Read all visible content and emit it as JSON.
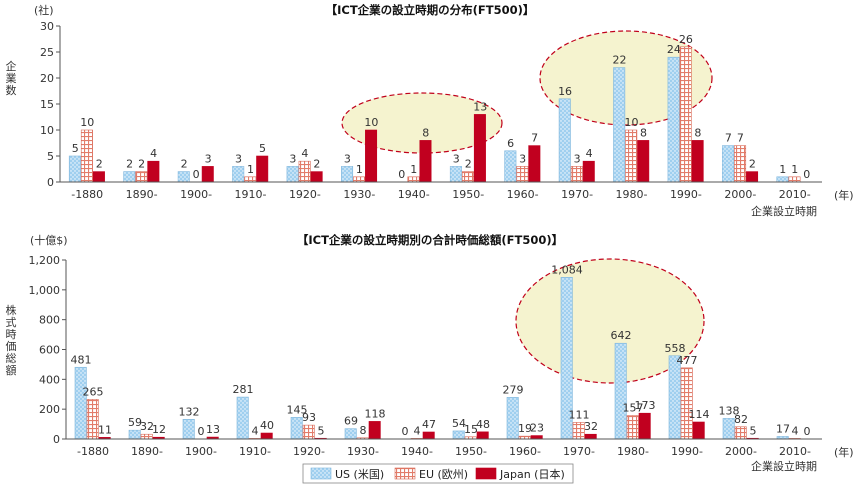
{
  "colors": {
    "US": "#9fcfef",
    "EU": "#e8a698",
    "Japan": "#c1001f",
    "highlight": "#f5f3cf",
    "highlight_border": "#c0001a"
  },
  "legend": [
    {
      "key": "US",
      "label": "US (米国)"
    },
    {
      "key": "EU",
      "label": "EU (欧州)"
    },
    {
      "key": "Japan",
      "label": "Japan (日本)"
    }
  ],
  "chart_data": [
    {
      "type": "bar",
      "title": "【ICT企業の設立時期の分布(FT500)】",
      "y_unit": "(社)",
      "ylabel": "企業数",
      "x_unit": "(年)",
      "xlabel": "企業設立時期",
      "ylim": [
        0,
        30
      ],
      "yticks": [
        0,
        5,
        10,
        15,
        20,
        25,
        30
      ],
      "ytick_labels": [
        "0",
        "5",
        "10",
        "15",
        "20",
        "25",
        "30"
      ],
      "categories": [
        "-1880",
        "1890-",
        "1900-",
        "1910-",
        "1920-",
        "1930-",
        "1940-",
        "1950-",
        "1960-",
        "1970-",
        "1980-",
        "1990-",
        "2000-",
        "2010-"
      ],
      "series": [
        {
          "name": "US (米国)",
          "key": "US",
          "values": [
            5,
            2,
            2,
            3,
            3,
            3,
            0,
            3,
            6,
            16,
            22,
            24,
            7,
            1
          ]
        },
        {
          "name": "EU (欧州)",
          "key": "EU",
          "values": [
            10,
            2,
            0,
            1,
            4,
            1,
            1,
            2,
            3,
            3,
            10,
            26,
            7,
            1
          ]
        },
        {
          "name": "Japan (日本)",
          "key": "Japan",
          "values": [
            2,
            4,
            3,
            5,
            2,
            10,
            8,
            13,
            7,
            4,
            8,
            8,
            2,
            0
          ]
        }
      ],
      "value_labels": [
        [
          "5",
          "2",
          "2",
          "3",
          "3",
          "3",
          "0",
          "3",
          "6",
          "16",
          "22",
          "24",
          "7",
          "1"
        ],
        [
          "10",
          "2",
          "0",
          "1",
          "4",
          "1",
          "1",
          "2",
          "3",
          "3",
          "10",
          "26",
          "7",
          "1"
        ],
        [
          "2",
          "4",
          "3",
          "5",
          "2",
          "10",
          "8",
          "13",
          "7",
          "4",
          "8",
          "8",
          "2",
          "0"
        ]
      ],
      "grid": false
    },
    {
      "type": "bar",
      "title": "【ICT企業の設立時期別の合計時価総額(FT500)】",
      "y_unit": "(十億$)",
      "ylabel": "株式時価総額",
      "x_unit": "(年)",
      "xlabel": "企業設立時期",
      "ylim": [
        0,
        1200
      ],
      "yticks": [
        0,
        200,
        400,
        600,
        800,
        1000,
        1200
      ],
      "ytick_labels": [
        "0",
        "200",
        "400",
        "600",
        "800",
        "1,000",
        "1,200"
      ],
      "categories": [
        "-1880",
        "1890-",
        "1900-",
        "1910-",
        "1920-",
        "1930-",
        "1940-",
        "1950-",
        "1960-",
        "1970-",
        "1980-",
        "1990-",
        "2000-",
        "2010-"
      ],
      "series": [
        {
          "name": "US (米国)",
          "key": "US",
          "values": [
            481,
            59,
            132,
            281,
            145,
            69,
            0,
            54,
            279,
            1084,
            642,
            558,
            138,
            17
          ]
        },
        {
          "name": "EU (欧州)",
          "key": "EU",
          "values": [
            265,
            32,
            0,
            4,
            93,
            8,
            4,
            15,
            19,
            111,
            157,
            477,
            82,
            4
          ]
        },
        {
          "name": "Japan (日本)",
          "key": "Japan",
          "values": [
            11,
            12,
            13,
            40,
            5,
            118,
            47,
            48,
            23,
            32,
            173,
            114,
            5,
            0
          ]
        }
      ],
      "value_labels": [
        [
          "481",
          "59",
          "132",
          "281",
          "145",
          "69",
          "0",
          "54",
          "279",
          "1,084",
          "642",
          "558",
          "138",
          "17"
        ],
        [
          "265",
          "32",
          "0",
          "4",
          "93",
          "8",
          "4",
          "15",
          "19",
          "111",
          "157",
          "477",
          "82",
          "4"
        ],
        [
          "11",
          "12",
          "13",
          "40",
          "5",
          "118",
          "47",
          "48",
          "23",
          "32",
          "173",
          "114",
          "5",
          "0"
        ]
      ],
      "grid": false
    }
  ]
}
